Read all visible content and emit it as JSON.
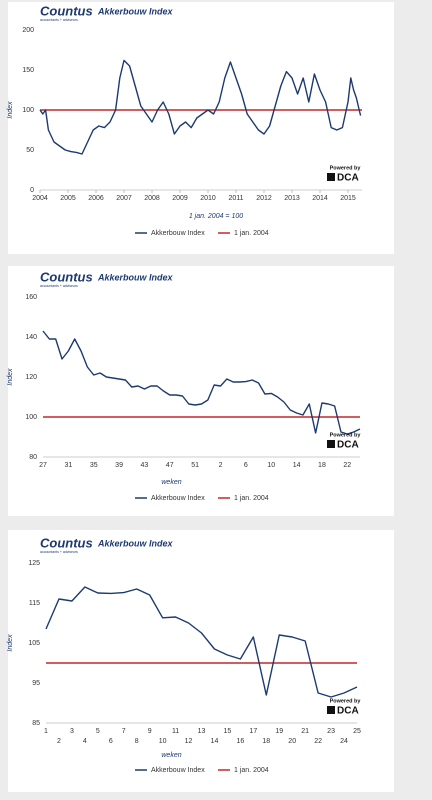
{
  "chart_data": [
    {
      "type": "line",
      "brand": "Countus",
      "brand_tagline": "accountants + adviseurs",
      "title": "Akkerbouw Index",
      "y_label": "Index",
      "annotation": "1 jan. 2004 = 100",
      "powered_by": "Powered by",
      "powered_logo": "DCA",
      "xlim": [
        2004,
        2015.5
      ],
      "xticks": [
        2004,
        2005,
        2006,
        2007,
        2008,
        2009,
        2010,
        2011,
        2012,
        2013,
        2014,
        2015
      ],
      "ylim": [
        0,
        200
      ],
      "yticks": [
        0,
        50,
        100,
        150,
        200
      ],
      "grid": false,
      "x": [
        2004.0,
        2004.1,
        2004.2,
        2004.3,
        2004.5,
        2004.7,
        2004.9,
        2005.1,
        2005.3,
        2005.5,
        2005.7,
        2005.9,
        2006.1,
        2006.3,
        2006.5,
        2006.7,
        2006.85,
        2007.0,
        2007.2,
        2007.4,
        2007.6,
        2007.8,
        2008.0,
        2008.2,
        2008.4,
        2008.6,
        2008.8,
        2009.0,
        2009.2,
        2009.4,
        2009.6,
        2009.8,
        2010.0,
        2010.2,
        2010.4,
        2010.6,
        2010.8,
        2011.0,
        2011.2,
        2011.4,
        2011.6,
        2011.8,
        2012.0,
        2012.2,
        2012.4,
        2012.6,
        2012.8,
        2013.0,
        2013.2,
        2013.4,
        2013.6,
        2013.8,
        2014.0,
        2014.2,
        2014.4,
        2014.6,
        2014.8,
        2015.0,
        2015.1,
        2015.2,
        2015.3,
        2015.4,
        2015.45
      ],
      "series": [
        {
          "name": "Akkerbouw Index",
          "color": "#1d3a70",
          "values": [
            100,
            95,
            100,
            75,
            60,
            55,
            50,
            48,
            47,
            45,
            60,
            75,
            80,
            78,
            85,
            100,
            140,
            162,
            155,
            130,
            105,
            95,
            85,
            100,
            110,
            95,
            70,
            80,
            85,
            78,
            90,
            95,
            100,
            95,
            110,
            140,
            160,
            140,
            120,
            95,
            85,
            75,
            70,
            80,
            105,
            130,
            148,
            140,
            120,
            140,
            110,
            145,
            125,
            110,
            78,
            75,
            78,
            110,
            140,
            125,
            115,
            100,
            93
          ]
        }
      ],
      "reference": {
        "name": "1 jan. 2004",
        "value": 100,
        "color": "#c0282d"
      }
    },
    {
      "type": "line",
      "brand": "Countus",
      "brand_tagline": "accountants + adviseurs",
      "title": "Akkerbouw Index",
      "y_label": "Index",
      "x_label": "weken",
      "powered_by": "Powered by",
      "powered_logo": "DCA",
      "ylim": [
        80,
        160
      ],
      "yticks": [
        80,
        100,
        120,
        140,
        160
      ],
      "grid": false,
      "stagger_labels": false,
      "categories": [
        "27",
        null,
        null,
        null,
        "31",
        null,
        null,
        null,
        "35",
        null,
        null,
        null,
        "39",
        null,
        null,
        null,
        "43",
        null,
        null,
        null,
        "47",
        null,
        null,
        null,
        "51",
        null,
        null,
        null,
        "2",
        null,
        null,
        null,
        "6",
        null,
        null,
        null,
        "10",
        null,
        null,
        null,
        "14",
        null,
        null,
        null,
        "18",
        null,
        null,
        null,
        "22",
        null,
        null
      ],
      "series": [
        {
          "name": "Akkerbouw Index",
          "color": "#1d3a70",
          "values": [
            143,
            139,
            139,
            129,
            133,
            139,
            133,
            125,
            121,
            122,
            120,
            119.5,
            119,
            118.5,
            115,
            115.5,
            114,
            115.5,
            115.5,
            113,
            111,
            111,
            110.5,
            106.5,
            106,
            106.5,
            108.5,
            116,
            115.5,
            119,
            117.5,
            117.5,
            117.7,
            118.5,
            117,
            111.5,
            111.8,
            110,
            107.5,
            103.5,
            102,
            101,
            106.5,
            92,
            107,
            106.5,
            105.5,
            92.5,
            91.5,
            92.5,
            94
          ]
        }
      ],
      "reference": {
        "name": "1 jan. 2004",
        "value": 100,
        "color": "#c0282d"
      }
    },
    {
      "type": "line",
      "brand": "Countus",
      "brand_tagline": "accountants + adviseurs",
      "title": "Akkerbouw Index",
      "y_label": "Index",
      "x_label": "weken",
      "powered_by": "Powered by",
      "powered_logo": "DCA",
      "ylim": [
        85,
        125
      ],
      "yticks": [
        85,
        95,
        105,
        115,
        125
      ],
      "grid": false,
      "stagger_labels": true,
      "categories": [
        "1",
        "2",
        "3",
        "4",
        "5",
        "6",
        "7",
        "8",
        "9",
        "10",
        "11",
        "12",
        "13",
        "14",
        "15",
        "16",
        "17",
        "18",
        "19",
        "20",
        "21",
        "22",
        "23",
        "24",
        "25"
      ],
      "series": [
        {
          "name": "Akkerbouw Index",
          "color": "#1d3a70",
          "values": [
            108.5,
            116,
            115.5,
            119,
            117.5,
            117.4,
            117.6,
            118.5,
            117,
            111.3,
            111.5,
            110,
            107.5,
            103.5,
            102,
            101,
            106.5,
            92,
            107,
            106.5,
            105.5,
            92.5,
            91.5,
            92.5,
            94
          ]
        }
      ],
      "reference": {
        "name": "1 jan. 2004",
        "value": 100,
        "color": "#c0282d"
      }
    }
  ]
}
